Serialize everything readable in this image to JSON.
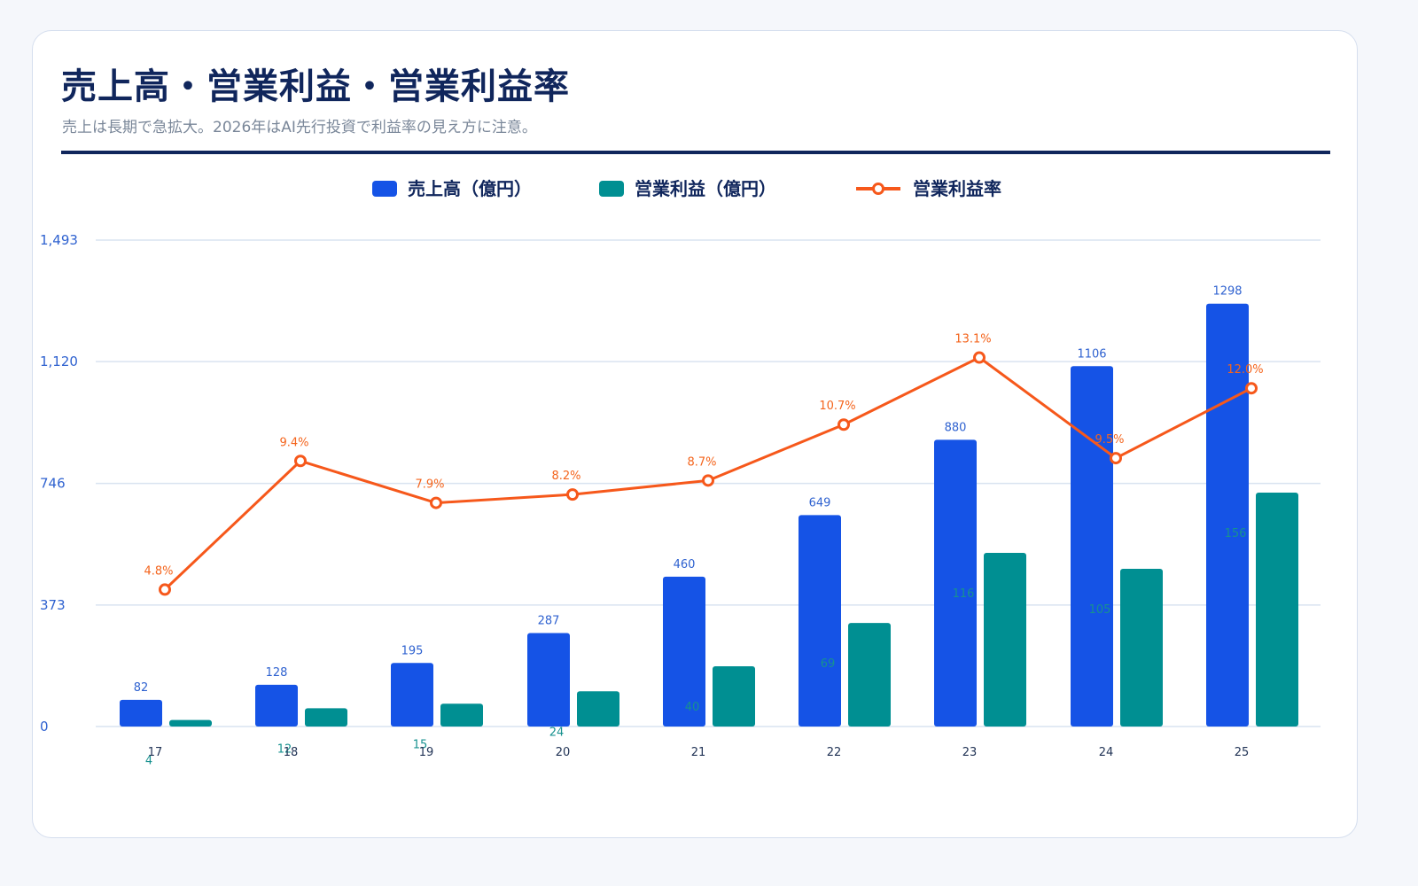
{
  "header": {
    "title": "売上高・営業利益・営業利益率",
    "subtitle": "売上は長期で急拡大。2026年はAI先行投資で利益率の見え方に注意。"
  },
  "colors": {
    "revenue": "#1553e6",
    "operating_profit": "#008f92",
    "margin": "#f6581b",
    "title": "#10265c"
  },
  "chart_data": {
    "type": "bar",
    "categories": [
      "17",
      "18",
      "19",
      "20",
      "21",
      "22",
      "23",
      "24",
      "25"
    ],
    "legend": [
      "売上高（億円）",
      "営業利益（億円）",
      "営業利益率"
    ],
    "legend_position": "top-center",
    "grid": true,
    "y_ticks": [
      "0",
      "373",
      "746",
      "1,120",
      "1,493"
    ],
    "ylim": [
      0,
      1493
    ],
    "series": [
      {
        "name": "売上高（億円）",
        "type": "bar",
        "values": [
          82,
          128,
          195,
          287,
          460,
          649,
          880,
          1106,
          1298
        ],
        "labels": [
          "82",
          "128",
          "195",
          "287",
          "460",
          "649",
          "880",
          "1106",
          "1298"
        ]
      },
      {
        "name": "営業利益（億円）",
        "type": "bar",
        "values": [
          4,
          12,
          15,
          24,
          40,
          69,
          116,
          105,
          156
        ],
        "labels": [
          "4",
          "12",
          "15",
          "24",
          "40",
          "69",
          "116",
          "105",
          "156"
        ],
        "plotted_heights": [
          20,
          56,
          70,
          108,
          185,
          318,
          533,
          484,
          718
        ]
      },
      {
        "name": "営業利益率",
        "type": "line",
        "values": [
          4.8,
          9.4,
          7.9,
          8.2,
          8.7,
          10.7,
          13.1,
          9.5,
          12.0
        ],
        "labels": [
          "4.8%",
          "9.4%",
          "7.9%",
          "8.2%",
          "8.7%",
          "10.7%",
          "13.1%",
          "9.5%",
          "12.0%"
        ],
        "ylim": [
          -0.1,
          17.3
        ]
      }
    ]
  }
}
